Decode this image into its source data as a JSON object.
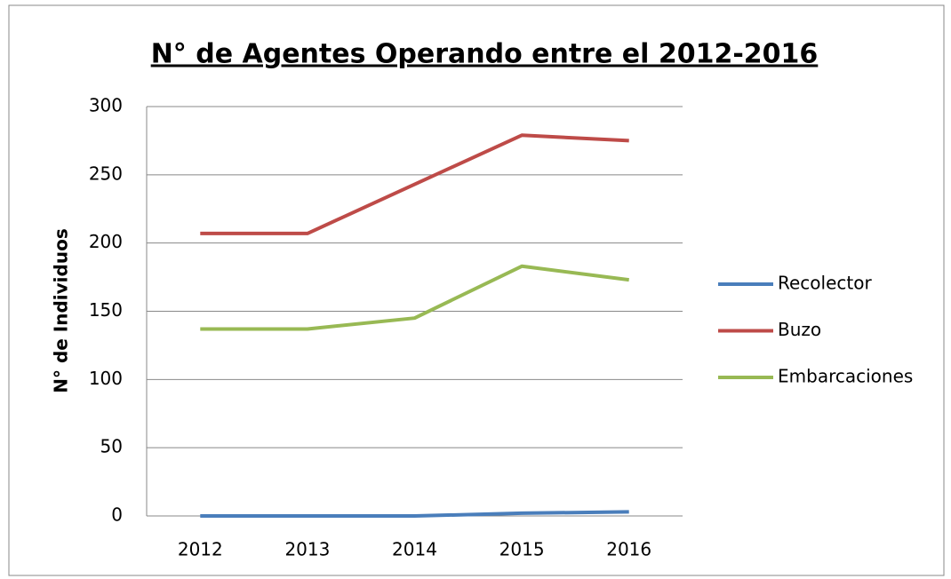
{
  "chart_data": {
    "type": "line",
    "title": "N° de Agentes Operando entre el 2012-2016",
    "y_label": "N° de Individuos",
    "categories": [
      "2012",
      "2013",
      "2014",
      "2015",
      "2016"
    ],
    "series": [
      {
        "name": "Recolector",
        "color": "#4a7ebb",
        "values": [
          0,
          0,
          0,
          2,
          3
        ]
      },
      {
        "name": "Buzo",
        "color": "#be4b48",
        "values": [
          207,
          207,
          243,
          279,
          275
        ]
      },
      {
        "name": "Embarcaciones",
        "color": "#98b954",
        "values": [
          137,
          137,
          145,
          183,
          173
        ]
      }
    ],
    "ylim": [
      0,
      300
    ],
    "yticks": [
      0,
      50,
      100,
      150,
      200,
      250,
      300
    ],
    "grid": true,
    "legend": "right"
  }
}
